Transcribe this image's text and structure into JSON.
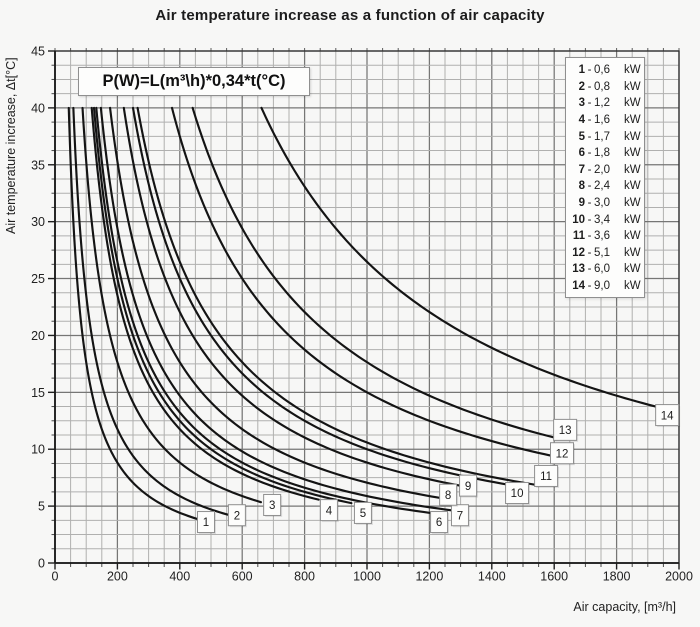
{
  "title": "Air temperature increase as a function of air capacity",
  "formula": "P(W)=L(m³\\h)*0,34*t(°C)",
  "legend": {
    "unit": "kW",
    "separator": "-",
    "position": "top-right"
  },
  "axes": {
    "x": {
      "label": "Air capacity, [m³/h]",
      "ticks": [
        0,
        200,
        400,
        600,
        800,
        1000,
        1200,
        1400,
        1600,
        1800,
        2000
      ]
    },
    "y": {
      "label": "Air temperature increase, Δt[°C]",
      "ticks": [
        0,
        5,
        10,
        15,
        20,
        25,
        30,
        35,
        40,
        45
      ]
    }
  },
  "chart_data": {
    "type": "line",
    "title": "Air temperature increase as a function of air capacity",
    "xlabel": "Air capacity, [m³/h]",
    "ylabel": "Air temperature increase, Δt[°C]",
    "xlim": [
      0,
      2000
    ],
    "ylim": [
      0,
      45
    ],
    "x_major": 200,
    "x_minor": 50,
    "y_major": 5,
    "y_minor": 1.25,
    "grid": true,
    "legend_position": "top-right",
    "relation": "dt = power_w / (0.34 * L)",
    "clip_dt": 40,
    "series": [
      {
        "index": 1,
        "kw_text": "0,6",
        "power_w": 600,
        "x_end": 455,
        "label_x": 484,
        "label_y": 3.6
      },
      {
        "index": 2,
        "kw_text": "0,8",
        "power_w": 800,
        "x_end": 560,
        "label_x": 583,
        "label_y": 4.2
      },
      {
        "index": 3,
        "kw_text": "1,2",
        "power_w": 1200,
        "x_end": 660,
        "label_x": 696,
        "label_y": 5.1
      },
      {
        "index": 4,
        "kw_text": "1,6",
        "power_w": 1600,
        "x_end": 845,
        "label_x": 878,
        "label_y": 4.65
      },
      {
        "index": 5,
        "kw_text": "1,7",
        "power_w": 1700,
        "x_end": 950,
        "label_x": 987,
        "label_y": 4.4
      },
      {
        "index": 6,
        "kw_text": "1,8",
        "power_w": 1800,
        "x_end": 1230,
        "label_x": 1231,
        "label_y": 3.6
      },
      {
        "index": 7,
        "kw_text": "2,0",
        "power_w": 2000,
        "x_end": 1280,
        "label_x": 1298,
        "label_y": 4.2
      },
      {
        "index": 8,
        "kw_text": "2,4",
        "power_w": 2400,
        "x_end": 1250,
        "label_x": 1260,
        "label_y": 6.0
      },
      {
        "index": 9,
        "kw_text": "3,0",
        "power_w": 3000,
        "x_end": 1310,
        "label_x": 1324,
        "label_y": 6.8
      },
      {
        "index": 10,
        "kw_text": "3,4",
        "power_w": 3400,
        "x_end": 1455,
        "label_x": 1481,
        "label_y": 6.15
      },
      {
        "index": 11,
        "kw_text": "3,6",
        "power_w": 3600,
        "x_end": 1545,
        "label_x": 1574,
        "label_y": 7.65
      },
      {
        "index": 12,
        "kw_text": "5,1",
        "power_w": 5100,
        "x_end": 1590,
        "label_x": 1625,
        "label_y": 9.65
      },
      {
        "index": 13,
        "kw_text": "6,0",
        "power_w": 6000,
        "x_end": 1600,
        "label_x": 1635,
        "label_y": 11.7
      },
      {
        "index": 14,
        "kw_text": "9,0",
        "power_w": 9000,
        "x_end": 1940,
        "label_x": 1962,
        "label_y": 13.0
      }
    ]
  },
  "colors": {
    "background": "#f7f7f6",
    "grid_minor": "#b0b0af",
    "grid_major": "#767675",
    "frame": "#2e2e2e",
    "curve": "#141414",
    "text": "#222222",
    "box_bg": "#fdfdfc",
    "box_border": "#8f8f8f"
  }
}
